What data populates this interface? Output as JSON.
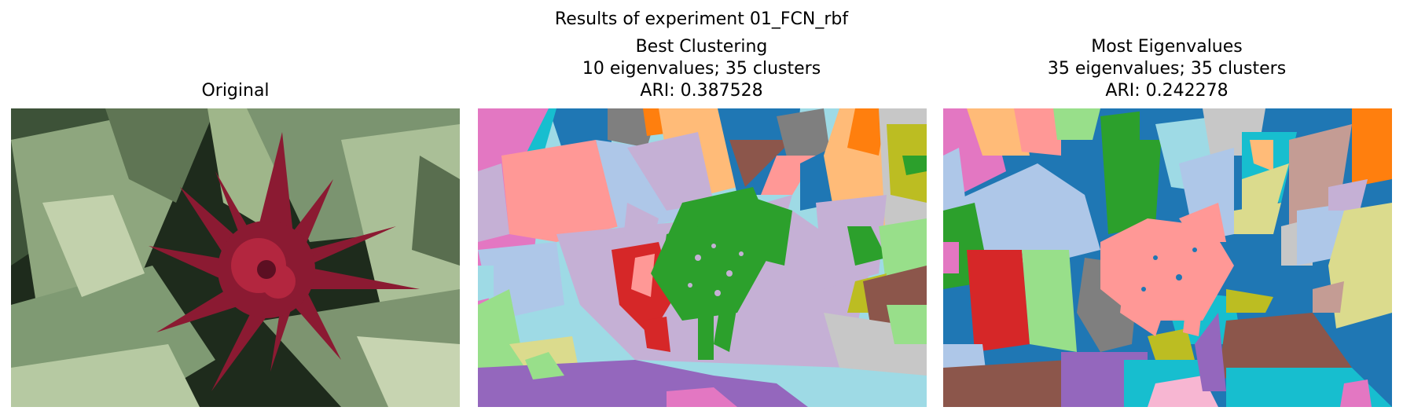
{
  "figure": {
    "suptitle": "Results of experiment 01_FCN_rbf",
    "panels": [
      {
        "title_lines": [
          "Original"
        ],
        "content": "photo of red bromeliad flower among striped green leaves"
      },
      {
        "title_lines": [
          "Best Clustering",
          "10 eigenvalues; 35 clusters",
          "ARI: 0.387528"
        ],
        "content": "segmentation map"
      },
      {
        "title_lines": [
          "Most Eigenvalues",
          "35 eigenvalues; 35 clusters",
          "ARI: 0.242278"
        ],
        "content": "segmentation map"
      }
    ]
  },
  "colors": {
    "tab_blue": "#1f77b4",
    "tab_lightblue": "#aec7e8",
    "tab_orange": "#ff7f0e",
    "tab_lightorange": "#ffbb78",
    "tab_green": "#2ca02c",
    "tab_lightgreen": "#98df8a",
    "tab_red": "#d62728",
    "tab_pink": "#ff9896",
    "tab_purple": "#9467bd",
    "tab_lavender": "#c5b0d5",
    "tab_brown": "#8c564b",
    "tab_lightbrown": "#c49c94",
    "tab_magenta": "#e377c2",
    "tab_lightmagenta": "#f7b6d2",
    "tab_gray": "#7f7f7f",
    "tab_lightgray": "#c7c7c7",
    "tab_olive": "#bcbd22",
    "tab_lightolive": "#dbdb8d",
    "tab_cyan": "#17becf",
    "tab_lightcyan": "#9edae5",
    "flower_red": "#8b1a32",
    "leaf_green": "#a9bf92",
    "leaf_dark": "#2d3f2b"
  }
}
